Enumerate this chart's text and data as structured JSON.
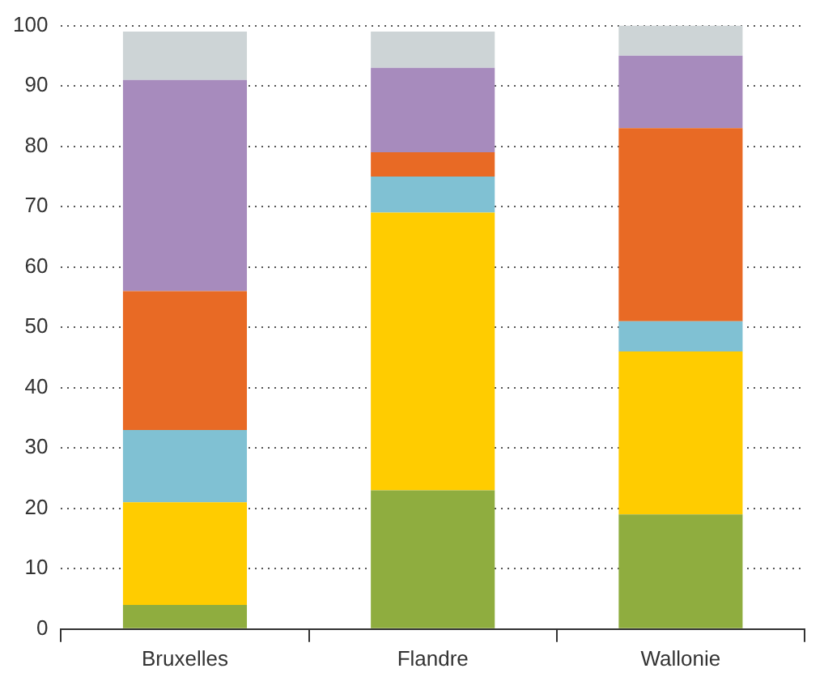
{
  "chart_data": {
    "type": "bar",
    "stacked": true,
    "categories": [
      "Bruxelles",
      "Flandre",
      "Wallonie"
    ],
    "series": [
      {
        "color": "#8fad3f",
        "values": [
          4,
          23,
          19
        ]
      },
      {
        "color": "#ffcc00",
        "values": [
          17,
          46,
          27
        ]
      },
      {
        "color": "#80c1d3",
        "values": [
          12,
          6,
          5
        ]
      },
      {
        "color": "#e86a25",
        "values": [
          23,
          4,
          32
        ]
      },
      {
        "color": "#a78bbd",
        "values": [
          35,
          14,
          12
        ]
      },
      {
        "color": "#cdd4d6",
        "values": [
          8,
          6,
          5
        ]
      }
    ],
    "ylim": [
      0,
      100
    ],
    "yticks": [
      0,
      10,
      20,
      30,
      40,
      50,
      60,
      70,
      80,
      90,
      100
    ],
    "grid": "y",
    "legend": false
  }
}
